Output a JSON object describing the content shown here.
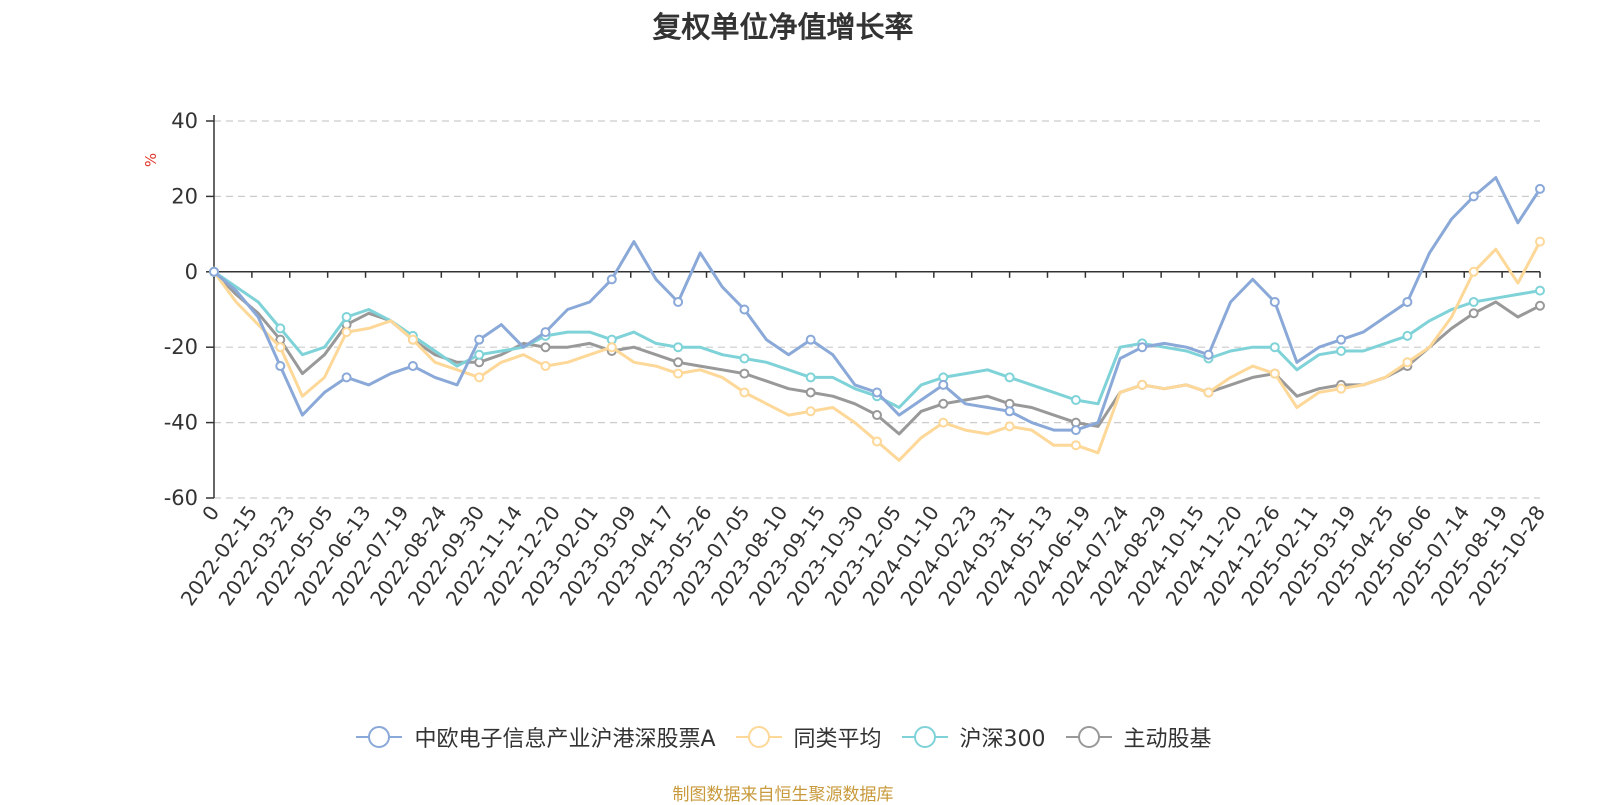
{
  "title": "复权单位净值增长率",
  "footer": "制图数据来自恒生聚源数据库",
  "chart_data": {
    "type": "line",
    "title": "复权单位净值增长率",
    "ylabel": "%",
    "ylim": [
      -60,
      40
    ],
    "yticks": [
      40,
      20,
      0,
      -20,
      -40,
      -60
    ],
    "x_tick_labels": [
      "0",
      "2022-02-15",
      "2022-03-23",
      "2022-05-05",
      "2022-06-13",
      "2022-07-19",
      "2022-08-24",
      "2022-09-30",
      "2022-11-14",
      "2022-12-20",
      "2023-02-01",
      "2023-03-09",
      "2023-04-17",
      "2023-05-26",
      "2023-07-05",
      "2023-08-10",
      "2023-09-15",
      "2023-10-30",
      "2023-12-05",
      "2024-01-10",
      "2024-02-23",
      "2024-03-31",
      "2024-05-13",
      "2024-06-19",
      "2024-07-24",
      "2024-08-29",
      "2024-10-15",
      "2024-11-20",
      "2024-12-26",
      "2025-02-11",
      "2025-03-19",
      "2025-04-25",
      "2025-06-06",
      "2025-07-14",
      "2025-08-19",
      "2025-10-28"
    ],
    "grid": true,
    "legend_position": "bottom",
    "series": [
      {
        "name": "中欧电子信息产业沪港深股票A",
        "color": "#8aa9d8",
        "values": [
          0,
          -5,
          -12,
          -25,
          -38,
          -32,
          -28,
          -30,
          -27,
          -25,
          -28,
          -30,
          -18,
          -14,
          -20,
          -16,
          -10,
          -8,
          -2,
          8,
          -2,
          -8,
          5,
          -4,
          -10,
          -18,
          -22,
          -18,
          -22,
          -30,
          -32,
          -38,
          -34,
          -30,
          -35,
          -36,
          -37,
          -40,
          -42,
          -42,
          -40,
          -23,
          -20,
          -19,
          -20,
          -22,
          -8,
          -2,
          -8,
          -24,
          -20,
          -18,
          -16,
          -12,
          -8,
          5,
          14,
          20,
          25,
          13,
          22
        ]
      },
      {
        "name": "同类平均",
        "color": "#fdd898",
        "values": [
          0,
          -8,
          -14,
          -20,
          -33,
          -28,
          -16,
          -15,
          -13,
          -18,
          -24,
          -26,
          -28,
          -24,
          -22,
          -25,
          -24,
          -22,
          -20,
          -24,
          -25,
          -27,
          -26,
          -28,
          -32,
          -35,
          -38,
          -37,
          -36,
          -40,
          -45,
          -50,
          -44,
          -40,
          -42,
          -43,
          -41,
          -42,
          -46,
          -46,
          -48,
          -32,
          -30,
          -31,
          -30,
          -32,
          -28,
          -25,
          -27,
          -36,
          -32,
          -31,
          -30,
          -28,
          -24,
          -20,
          -12,
          0,
          6,
          -3,
          8
        ]
      },
      {
        "name": "沪深300",
        "color": "#7fd3d8",
        "values": [
          0,
          -4,
          -8,
          -15,
          -22,
          -20,
          -12,
          -10,
          -13,
          -17,
          -21,
          -25,
          -22,
          -21,
          -20,
          -17,
          -16,
          -16,
          -18,
          -16,
          -19,
          -20,
          -20,
          -22,
          -23,
          -24,
          -26,
          -28,
          -28,
          -31,
          -33,
          -36,
          -30,
          -28,
          -27,
          -26,
          -28,
          -30,
          -32,
          -34,
          -35,
          -20,
          -19,
          -20,
          -21,
          -23,
          -21,
          -20,
          -20,
          -26,
          -22,
          -21,
          -21,
          -19,
          -17,
          -13,
          -10,
          -8,
          -7,
          -6,
          -5
        ]
      },
      {
        "name": "主动股基",
        "color": "#999999",
        "values": [
          0,
          -6,
          -11,
          -18,
          -27,
          -22,
          -14,
          -11,
          -13,
          -18,
          -22,
          -24,
          -24,
          -22,
          -19,
          -20,
          -20,
          -19,
          -21,
          -20,
          -22,
          -24,
          -25,
          -26,
          -27,
          -29,
          -31,
          -32,
          -33,
          -35,
          -38,
          -43,
          -37,
          -35,
          -34,
          -33,
          -35,
          -36,
          -38,
          -40,
          -41,
          -32,
          -30,
          -31,
          -30,
          -32,
          -30,
          -28,
          -27,
          -33,
          -31,
          -30,
          -30,
          -28,
          -25,
          -20,
          -15,
          -11,
          -8,
          -12,
          -9
        ]
      }
    ]
  }
}
